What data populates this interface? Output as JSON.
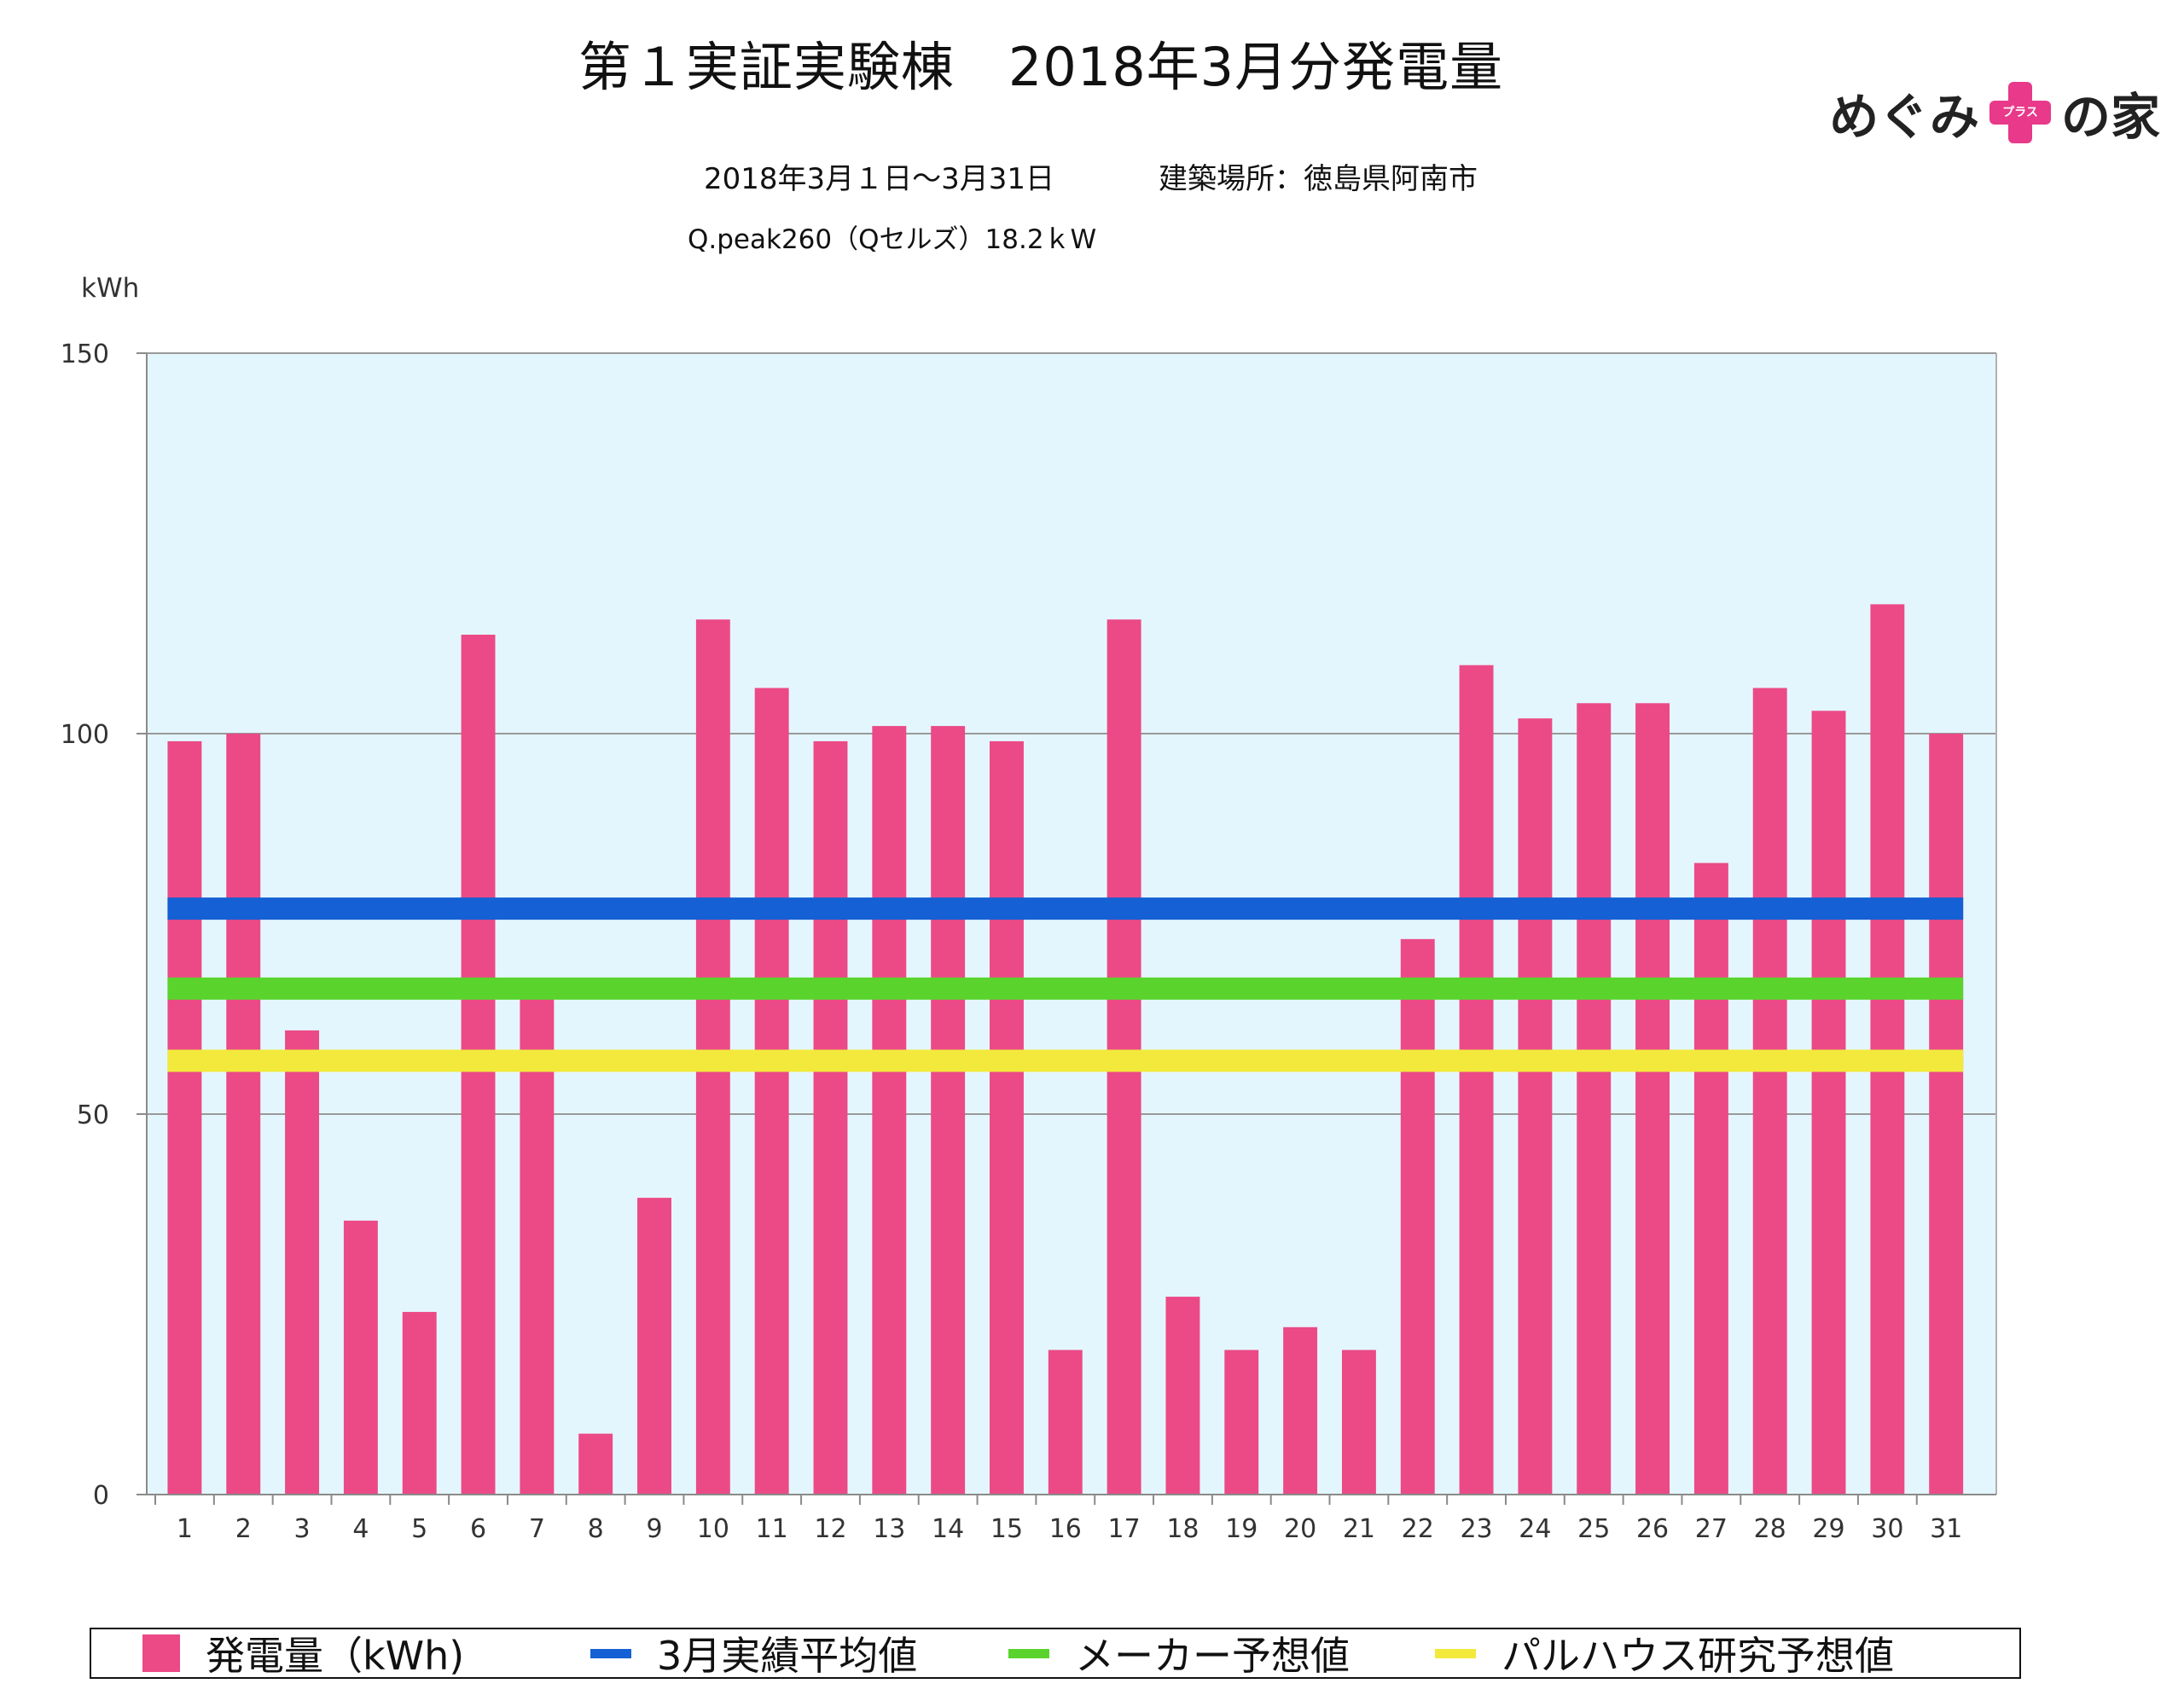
{
  "title": "第１実証実験棟　2018年3月分発電量",
  "period": "2018年3月１日〜3月31日",
  "location": "建築場所：徳島県阿南市",
  "system": "Q.peak260（Qセルズ）18.2ｋW",
  "logo": {
    "left": "めぐみ",
    "plus_text": "プラス",
    "right": "の家",
    "plus_color": "#e8398a"
  },
  "chart_data": {
    "type": "bar",
    "ylabel": "kWh",
    "ylim": [
      0,
      150
    ],
    "yticks": [
      0,
      50,
      100,
      150
    ],
    "grid": true,
    "plot_background": "#e4f6fd",
    "categories": [
      "1",
      "2",
      "3",
      "4",
      "5",
      "6",
      "7",
      "8",
      "9",
      "10",
      "11",
      "12",
      "13",
      "14",
      "15",
      "16",
      "17",
      "18",
      "19",
      "20",
      "21",
      "22",
      "23",
      "24",
      "25",
      "26",
      "27",
      "28",
      "29",
      "30",
      "31"
    ],
    "series": [
      {
        "name": "発電量（kWh)",
        "color": "#eb4a86",
        "values": [
          99,
          100,
          61,
          36,
          24,
          113,
          66,
          8,
          39,
          115,
          106,
          99,
          101,
          101,
          99,
          19,
          115,
          26,
          19,
          22,
          19,
          73,
          109,
          102,
          104,
          104,
          83,
          106,
          103,
          117,
          100
        ]
      }
    ],
    "reference_lines": [
      {
        "name": "3月実績平均値",
        "value": 77,
        "color": "#1560d4"
      },
      {
        "name": "メーカー予想値",
        "value": 66.5,
        "color": "#5ad42d"
      },
      {
        "name": "パルハウス研究予想値",
        "value": 57,
        "color": "#f2e93c"
      }
    ],
    "legend_position": "bottom"
  }
}
